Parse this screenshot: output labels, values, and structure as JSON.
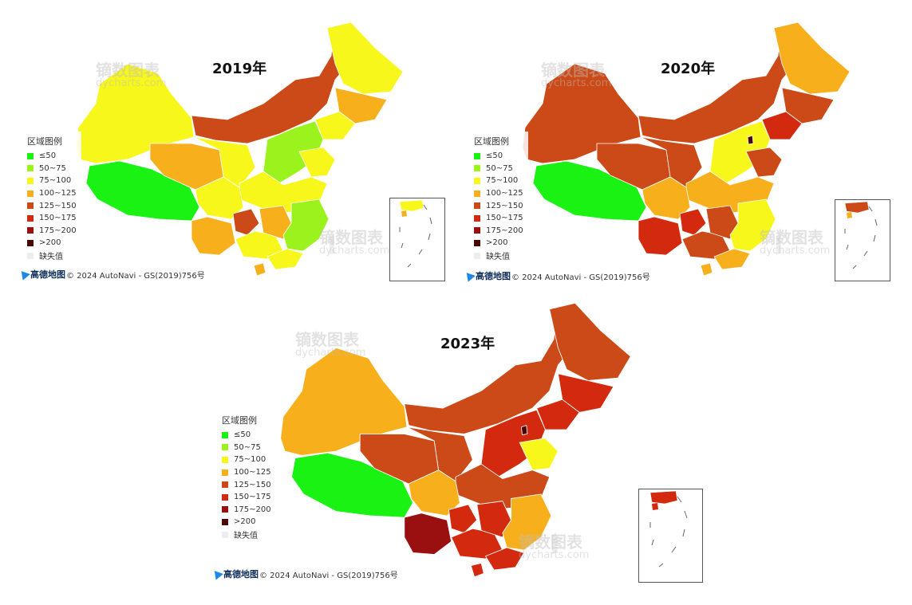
{
  "legend": {
    "title": "区域图例",
    "items": [
      {
        "label": "≤50",
        "color": "#19f213"
      },
      {
        "label": "50~75",
        "color": "#9cf21c"
      },
      {
        "label": "75~100",
        "color": "#f7f71c"
      },
      {
        "label": "100~125",
        "color": "#f7b01c"
      },
      {
        "label": "125~150",
        "color": "#cc4a17"
      },
      {
        "label": "150~175",
        "color": "#d32a0f"
      },
      {
        "label": "175~200",
        "color": "#9a1010"
      },
      {
        "label": ">200",
        "color": "#4a0505"
      },
      {
        "label": "缺失值",
        "color": "#eeeeee"
      }
    ]
  },
  "credit": {
    "logo": "高德地图",
    "text": "© 2024 AutoNavi - GS(2019)756号"
  },
  "watermark": {
    "brand": "镝数图表",
    "site": "dycharts.com"
  },
  "maps": [
    {
      "title": "2019年"
    },
    {
      "title": "2020年"
    },
    {
      "title": "2023年"
    }
  ]
}
